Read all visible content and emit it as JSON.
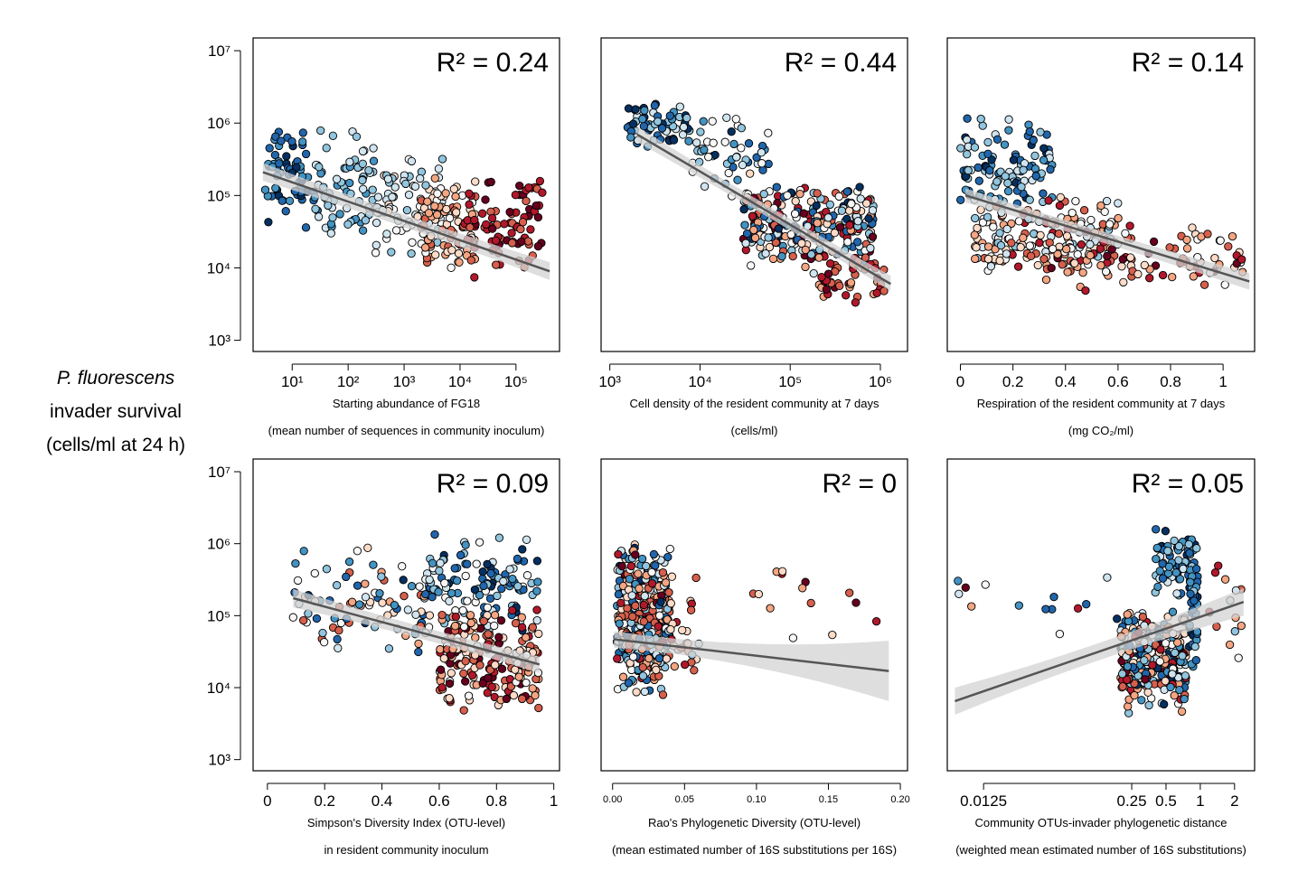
{
  "y_axis_label": {
    "species": "P. fluorescens",
    "line2": "invader survival",
    "line3": "(cells/ml at 24 h)"
  },
  "colors": {
    "palette": [
      "#053061",
      "#2166ac",
      "#4393c3",
      "#92c5de",
      "#d1e5f0",
      "#f7f7f7",
      "#fddbc7",
      "#f4a582",
      "#d6604d",
      "#b2182b",
      "#67001f"
    ],
    "fit_line": "#555555",
    "confidence_band": "#d3d3d3"
  },
  "chart_data": [
    {
      "type": "scatter",
      "title": "",
      "r2_label": "R² = 0.24",
      "xlabel": "Starting abundance of FG18",
      "xlabel2": "(mean number of sequences in community inoculum)",
      "ylabel": "P. fluorescens invader survival (cells/ml at 24 h)",
      "x_scale": "log",
      "y_scale": "log",
      "xlim": [
        2,
        600000
      ],
      "ylim": [
        700,
        15000000
      ],
      "x_ticks": [
        10,
        100,
        1000,
        10000,
        100000
      ],
      "x_tick_labels": [
        "10¹",
        "10²",
        "10³",
        "10⁴",
        "10⁵"
      ],
      "y_ticks": [
        1000,
        10000,
        100000,
        1000000,
        10000000
      ],
      "y_tick_labels": [
        "10³",
        "10⁴",
        "10⁵",
        "10⁶",
        "10⁷"
      ],
      "trend": {
        "x": [
          3,
          400000
        ],
        "y": [
          210000,
          9000
        ]
      },
      "band": {
        "lo": [
          160000,
          6800
        ],
        "hi": [
          280000,
          12000
        ],
        "mid": [
          90000,
          38000
        ]
      },
      "clusters": [
        {
          "x": [
            3,
            30
          ],
          "y": [
            12000,
            2500000
          ],
          "n": 65,
          "c": [
            0,
            2
          ],
          "log_x": true
        },
        {
          "x": [
            25,
            300
          ],
          "y": [
            8000,
            3000000
          ],
          "n": 70,
          "c": [
            2,
            4
          ],
          "log_x": true
        },
        {
          "x": [
            300,
            5000
          ],
          "y": [
            6000,
            800000
          ],
          "n": 85,
          "c": [
            3,
            6
          ],
          "log_x": true
        },
        {
          "x": [
            2000,
            20000
          ],
          "y": [
            4000,
            400000
          ],
          "n": 80,
          "c": [
            5,
            8
          ],
          "log_x": true
        },
        {
          "x": [
            10000,
            300000
          ],
          "y": [
            3000,
            600000
          ],
          "n": 85,
          "c": [
            8,
            10
          ],
          "log_x": true
        }
      ]
    },
    {
      "type": "scatter",
      "title": "",
      "r2_label": "R² = 0.44",
      "xlabel": "Cell density of the resident community at 7 days",
      "xlabel2": "(cells/ml)",
      "ylabel": "",
      "x_scale": "log",
      "y_scale": "log",
      "xlim": [
        800,
        2000000
      ],
      "ylim": [
        700,
        15000000
      ],
      "x_ticks": [
        1000,
        10000,
        100000,
        1000000
      ],
      "x_tick_labels": [
        "10³",
        "10⁴",
        "10⁵",
        "10⁶"
      ],
      "y_ticks": [
        1000,
        10000,
        100000,
        1000000,
        10000000
      ],
      "y_tick_labels": [
        "",
        "",
        "",
        "",
        ""
      ],
      "trend": {
        "x": [
          2000,
          1300000
        ],
        "y": [
          700000,
          6000
        ]
      },
      "band": {
        "lo": [
          550000,
          4800
        ],
        "hi": [
          900000,
          7800
        ],
        "mid": [
          45000,
          60000
        ]
      },
      "clusters": [
        {
          "x": [
            1500,
            8000
          ],
          "y": [
            300000,
            3000000
          ],
          "n": 60,
          "c": [
            0,
            4
          ],
          "log_x": true
        },
        {
          "x": [
            8000,
            60000
          ],
          "y": [
            50000,
            2500000
          ],
          "n": 50,
          "c": [
            0,
            6
          ],
          "log_x": true
        },
        {
          "x": [
            30000,
            900000
          ],
          "y": [
            4000,
            300000
          ],
          "n": 260,
          "c": [
            0,
            10
          ],
          "log_x": true
        },
        {
          "x": [
            200000,
            1200000
          ],
          "y": [
            2000,
            20000
          ],
          "n": 40,
          "c": [
            7,
            10
          ],
          "log_x": true
        }
      ]
    },
    {
      "type": "scatter",
      "title": "",
      "r2_label": "R² = 0.14",
      "xlabel": "Respiration of the resident community at 7 days",
      "xlabel2": "(mg CO₂/ml)",
      "ylabel": "",
      "x_scale": "linear",
      "y_scale": "log",
      "xlim": [
        -0.05,
        1.12
      ],
      "ylim": [
        700,
        15000000
      ],
      "x_ticks": [
        0,
        0.2,
        0.4,
        0.6,
        0.8,
        1
      ],
      "x_tick_labels": [
        "0",
        "0.2",
        "0.4",
        "0.6",
        "0.8",
        "1"
      ],
      "y_ticks": [
        1000,
        10000,
        100000,
        1000000,
        10000000
      ],
      "y_tick_labels": [
        "",
        "",
        "",
        "",
        ""
      ],
      "trend": {
        "x": [
          0.02,
          1.1
        ],
        "y": [
          100000,
          6500
        ]
      },
      "band": {
        "lo": [
          80000,
          5000
        ],
        "hi": [
          125000,
          8500
        ],
        "mid": [
          0.45,
          0.55
        ]
      },
      "clusters": [
        {
          "x": [
            0,
            0.35
          ],
          "y": [
            20000,
            3000000
          ],
          "n": 110,
          "c": [
            0,
            4
          ],
          "log_x": false
        },
        {
          "x": [
            0.05,
            0.6
          ],
          "y": [
            4000,
            200000
          ],
          "n": 170,
          "c": [
            3,
            9
          ],
          "log_x": false
        },
        {
          "x": [
            0.3,
            1.1
          ],
          "y": [
            2000,
            100000
          ],
          "n": 100,
          "c": [
            5,
            10
          ],
          "log_x": false
        }
      ]
    },
    {
      "type": "scatter",
      "title": "",
      "r2_label": "R² = 0.09",
      "xlabel": "Simpson's Diversity Index (OTU-level)",
      "xlabel2": "in resident community inoculum",
      "ylabel": "P. fluorescens invader survival (cells/ml at 24 h)",
      "x_scale": "linear",
      "y_scale": "log",
      "xlim": [
        -0.05,
        1.02
      ],
      "ylim": [
        700,
        15000000
      ],
      "x_ticks": [
        0,
        0.2,
        0.4,
        0.6,
        0.8,
        1
      ],
      "x_tick_labels": [
        "0",
        "0.2",
        "0.4",
        "0.6",
        "0.8",
        "1"
      ],
      "y_ticks": [
        1000,
        10000,
        100000,
        1000000,
        10000000
      ],
      "y_tick_labels": [
        "10³",
        "10⁴",
        "10⁵",
        "10⁶",
        "10⁷"
      ],
      "trend": {
        "x": [
          0.09,
          0.95
        ],
        "y": [
          175000,
          21000
        ]
      },
      "band": {
        "lo": [
          130000,
          16000
        ],
        "hi": [
          235000,
          27000
        ],
        "mid": [
          0.55,
          0.65
        ]
      },
      "clusters": [
        {
          "x": [
            0.08,
            0.6
          ],
          "y": [
            8000,
            3000000
          ],
          "n": 90,
          "c": [
            0,
            8
          ],
          "log_x": false
        },
        {
          "x": [
            0.55,
            0.95
          ],
          "y": [
            20000,
            3500000
          ],
          "n": 120,
          "c": [
            0,
            5
          ],
          "log_x": false
        },
        {
          "x": [
            0.6,
            0.95
          ],
          "y": [
            2000,
            300000
          ],
          "n": 200,
          "c": [
            5,
            10
          ],
          "log_x": false
        }
      ]
    },
    {
      "type": "scatter",
      "title": "",
      "r2_label": "R² = 0",
      "xlabel": "Rao's Phylogenetic Diversity (OTU-level)",
      "xlabel2": "(mean estimated number of 16S substitutions per 16S)",
      "ylabel": "",
      "x_scale": "linear",
      "y_scale": "log",
      "xlim": [
        -0.008,
        0.205
      ],
      "ylim": [
        700,
        15000000
      ],
      "x_ticks": [
        0,
        0.05,
        0.1,
        0.15,
        0.2
      ],
      "x_tick_labels": [
        "0.00",
        "0.05",
        "0.10",
        "0.15",
        "0.20"
      ],
      "y_ticks": [
        1000,
        10000,
        100000,
        1000000,
        10000000
      ],
      "y_tick_labels": [
        "",
        "",
        "",
        "",
        ""
      ],
      "trend": {
        "x": [
          0.001,
          0.192
        ],
        "y": [
          47000,
          17000
        ]
      },
      "band": {
        "lo": [
          36000,
          6500
        ],
        "hi": [
          61000,
          45000
        ],
        "mid": [
          0.02,
          0.04
        ]
      },
      "clusters": [
        {
          "x": [
            0.003,
            0.04
          ],
          "y": [
            2500,
            3000000
          ],
          "n": 380,
          "c": [
            0,
            10
          ],
          "log_x": false
        },
        {
          "x": [
            0.04,
            0.06
          ],
          "y": [
            5000,
            1000000
          ],
          "n": 25,
          "c": [
            3,
            9
          ],
          "log_x": false
        },
        {
          "x": [
            0.07,
            0.2
          ],
          "y": [
            7000,
            3000000
          ],
          "n": 14,
          "c": [
            4,
            10
          ],
          "log_x": false
        }
      ]
    },
    {
      "type": "scatter",
      "title": "",
      "r2_label": "R² = 0.05",
      "xlabel": "Community OTUs-invader phylogenetic distance",
      "xlabel2": "(weighted mean estimated number of 16S substitutions)",
      "ylabel": "",
      "x_scale": "log",
      "y_scale": "log",
      "xlim": [
        0.006,
        3.0
      ],
      "ylim": [
        700,
        15000000
      ],
      "x_ticks": [
        0.0125,
        0.25,
        0.5,
        1,
        2
      ],
      "x_tick_labels": [
        "0.0125",
        "0.25",
        "0.5",
        "1",
        "2"
      ],
      "y_ticks": [
        1000,
        10000,
        100000,
        1000000,
        10000000
      ],
      "y_tick_labels": [
        "",
        "",
        "",
        "",
        ""
      ],
      "trend": {
        "x": [
          0.007,
          2.4
        ],
        "y": [
          6500,
          155000
        ]
      },
      "band": {
        "lo": [
          4200,
          100000
        ],
        "hi": [
          10000,
          240000
        ],
        "mid": [
          0.4,
          0.6
        ]
      },
      "clusters": [
        {
          "x": [
            0.2,
            0.75
          ],
          "y": [
            2000,
            300000
          ],
          "n": 280,
          "c": [
            0,
            10
          ],
          "log_x": true
        },
        {
          "x": [
            0.4,
            0.9
          ],
          "y": [
            100000,
            3000000
          ],
          "n": 70,
          "c": [
            0,
            4
          ],
          "log_x": true
        },
        {
          "x": [
            0.8,
            0.95
          ],
          "y": [
            5000,
            3000000
          ],
          "n": 40,
          "c": [
            0,
            3
          ],
          "log_x": true
        },
        {
          "x": [
            0.007,
            0.2
          ],
          "y": [
            10000,
            3000000
          ],
          "n": 14,
          "c": [
            0,
            10
          ],
          "log_x": true
        },
        {
          "x": [
            1.2,
            2.4
          ],
          "y": [
            7000,
            3000000
          ],
          "n": 14,
          "c": [
            2,
            10
          ],
          "log_x": true
        }
      ]
    }
  ]
}
